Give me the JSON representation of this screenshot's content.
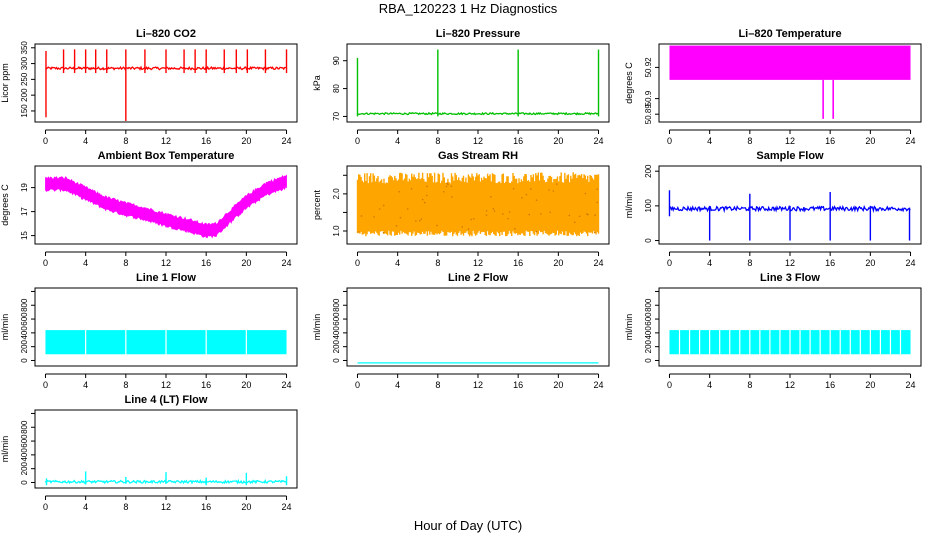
{
  "title": "RBA_120223  1 Hz Diagnostics",
  "xlabel": "Hour of Day (UTC)",
  "chart_data": [
    {
      "type": "line",
      "title": "Li–820 CO2",
      "ylabel": "Licor ppm",
      "color": "#ff0000",
      "xlim": [
        0,
        24
      ],
      "xticks": [
        0,
        4,
        8,
        12,
        16,
        20,
        24
      ],
      "ylim": [
        115,
        362
      ],
      "yticks": [
        150,
        200,
        250,
        300,
        350
      ],
      "series": [
        {
          "name": "CO2",
          "baseline": 285,
          "noise": 4,
          "spikes": [
            {
              "x": 0.05,
              "lo": 130,
              "hi": 340
            },
            {
              "x": 1.8,
              "lo": 270,
              "hi": 345
            },
            {
              "x": 2.9,
              "lo": 270,
              "hi": 345
            },
            {
              "x": 4.0,
              "lo": 270,
              "hi": 345
            },
            {
              "x": 5.0,
              "lo": 270,
              "hi": 345
            },
            {
              "x": 6.1,
              "lo": 270,
              "hi": 345
            },
            {
              "x": 8.0,
              "lo": 115,
              "hi": 345
            },
            {
              "x": 9.9,
              "lo": 270,
              "hi": 345
            },
            {
              "x": 12.0,
              "lo": 270,
              "hi": 345
            },
            {
              "x": 13.8,
              "lo": 270,
              "hi": 345
            },
            {
              "x": 14.9,
              "lo": 270,
              "hi": 345
            },
            {
              "x": 16.0,
              "lo": 270,
              "hi": 345
            },
            {
              "x": 17.8,
              "lo": 270,
              "hi": 345
            },
            {
              "x": 19.0,
              "lo": 270,
              "hi": 345
            },
            {
              "x": 20.1,
              "lo": 270,
              "hi": 345
            },
            {
              "x": 21.9,
              "lo": 270,
              "hi": 345
            },
            {
              "x": 24.0,
              "lo": 270,
              "hi": 345
            }
          ]
        }
      ]
    },
    {
      "type": "line",
      "title": "Li–820 Pressure",
      "ylabel": "kPa",
      "color": "#00c000",
      "xlim": [
        0,
        24
      ],
      "xticks": [
        0,
        4,
        8,
        12,
        16,
        20,
        24
      ],
      "ylim": [
        68,
        96
      ],
      "yticks": [
        70,
        80,
        90
      ],
      "series": [
        {
          "name": "Pressure",
          "baseline": 71,
          "noise": 0.3,
          "spikes": [
            {
              "x": 0.0,
              "lo": 70,
              "hi": 91
            },
            {
              "x": 8.0,
              "lo": 70,
              "hi": 94
            },
            {
              "x": 16.0,
              "lo": 70,
              "hi": 94
            },
            {
              "x": 24.0,
              "lo": 70,
              "hi": 94
            }
          ]
        }
      ]
    },
    {
      "type": "area",
      "title": "Li–820 Temperature",
      "ylabel": "degrees C",
      "color": "#ff00ff",
      "xlim": [
        0,
        24
      ],
      "xticks": [
        0,
        4,
        8,
        12,
        16,
        20,
        24
      ],
      "ylim": [
        50.885,
        50.935
      ],
      "yticks": [
        50.89,
        50.9,
        50.92
      ],
      "series": [
        {
          "name": "Temperature",
          "band": [
            50.912,
            50.934
          ],
          "drops": [
            {
              "x": 15.3,
              "lo": 50.887
            },
            {
              "x": 16.3,
              "lo": 50.887
            }
          ]
        }
      ]
    },
    {
      "type": "area",
      "title": "Ambient Box Temperature",
      "ylabel": "degrees C",
      "color": "#ff00ff",
      "xlim": [
        0,
        24
      ],
      "xticks": [
        0,
        4,
        8,
        12,
        16,
        20,
        24
      ],
      "ylim": [
        14.3,
        20.8
      ],
      "yticks": [
        15,
        17,
        19
      ],
      "series": [
        {
          "name": "Box Temp",
          "x": [
            0,
            2,
            4,
            6,
            8,
            10,
            12,
            14,
            16,
            17,
            18,
            20,
            22,
            24
          ],
          "y": [
            19.3,
            19.3,
            18.5,
            17.7,
            17.2,
            16.8,
            16.3,
            15.9,
            15.4,
            15.5,
            16.3,
            17.8,
            18.9,
            19.5
          ],
          "halfwidth": 0.5
        }
      ]
    },
    {
      "type": "area",
      "title": "Gas Stream RH",
      "ylabel": "percent",
      "color": "#ffa500",
      "xlim": [
        0,
        24
      ],
      "xticks": [
        0,
        4,
        8,
        12,
        16,
        20,
        24
      ],
      "ylim": [
        0.65,
        2.75
      ],
      "yticks": [
        1.0,
        1.5,
        2.0,
        2.5
      ],
      "ytick_labels": [
        "1.0",
        "",
        "2.0",
        ""
      ],
      "series": [
        {
          "name": "RH",
          "band": [
            0.95,
            2.4
          ],
          "jitter": 0.15
        }
      ]
    },
    {
      "type": "line",
      "title": "Sample Flow",
      "ylabel": "ml/min",
      "color": "#0000ff",
      "xlim": [
        0,
        24
      ],
      "xticks": [
        0,
        4,
        8,
        12,
        16,
        20,
        24
      ],
      "ylim": [
        -10,
        215
      ],
      "yticks": [
        0,
        100,
        200
      ],
      "series": [
        {
          "name": "Sample",
          "baseline": 92,
          "noise": 6,
          "spikes": [
            {
              "x": 0.0,
              "lo": 70,
              "hi": 145
            },
            {
              "x": 4.0,
              "lo": 0,
              "hi": 100
            },
            {
              "x": 8.0,
              "lo": 0,
              "hi": 135
            },
            {
              "x": 12.0,
              "lo": 0,
              "hi": 100
            },
            {
              "x": 16.0,
              "lo": 0,
              "hi": 140
            },
            {
              "x": 20.0,
              "lo": 0,
              "hi": 100
            },
            {
              "x": 23.9,
              "lo": 0,
              "hi": 95
            }
          ]
        }
      ]
    },
    {
      "type": "area",
      "title": "Line 1 Flow",
      "ylabel": "ml/min",
      "color": "#00ffff",
      "xlim": [
        0,
        24
      ],
      "xticks": [
        0,
        4,
        8,
        12,
        16,
        20,
        24
      ],
      "ylim": [
        -80,
        1050
      ],
      "yticks": [
        0,
        200,
        400,
        600,
        800,
        1000
      ],
      "ytick_labels": [
        "0",
        "200",
        "400",
        "600",
        "800",
        ""
      ],
      "series": [
        {
          "name": "Line 1",
          "band": [
            90,
            440
          ],
          "gaps": [
            4,
            8,
            12,
            16,
            20
          ]
        }
      ]
    },
    {
      "type": "line",
      "title": "Line 2 Flow",
      "ylabel": "ml/min",
      "color": "#00ffff",
      "xlim": [
        0,
        24
      ],
      "xticks": [
        0,
        4,
        8,
        12,
        16,
        20,
        24
      ],
      "ylim": [
        -80,
        1050
      ],
      "yticks": [
        0,
        200,
        400,
        600,
        800,
        1000
      ],
      "ytick_labels": [
        "0",
        "200",
        "400",
        "600",
        "800",
        ""
      ],
      "series": [
        {
          "name": "Line 2",
          "baseline": -35,
          "noise": 0
        }
      ]
    },
    {
      "type": "area",
      "title": "Line 3 Flow",
      "ylabel": "ml/min",
      "color": "#00ffff",
      "xlim": [
        0,
        24
      ],
      "xticks": [
        0,
        4,
        8,
        12,
        16,
        20,
        24
      ],
      "ylim": [
        -80,
        1050
      ],
      "yticks": [
        0,
        200,
        400,
        600,
        800,
        1000
      ],
      "ytick_labels": [
        "0",
        "200",
        "400",
        "600",
        "800",
        ""
      ],
      "series": [
        {
          "name": "Line 3",
          "band": [
            90,
            440
          ],
          "gaps": [
            1,
            2,
            3,
            4,
            5,
            6,
            7,
            8,
            9,
            10,
            11,
            12,
            13,
            14,
            15,
            16,
            17,
            18,
            19,
            20,
            21,
            22,
            23
          ]
        }
      ]
    },
    {
      "type": "line",
      "title": "Line 4 (LT) Flow",
      "ylabel": "ml/min",
      "color": "#00ffff",
      "xlim": [
        0,
        24
      ],
      "xticks": [
        0,
        4,
        8,
        12,
        16,
        20,
        24
      ],
      "ylim": [
        -80,
        1050
      ],
      "yticks": [
        0,
        200,
        400,
        600,
        800,
        1000
      ],
      "ytick_labels": [
        "0",
        "200",
        "400",
        "600",
        "800",
        ""
      ],
      "series": [
        {
          "name": "Line 4",
          "baseline": 10,
          "noise": 18,
          "spikes": [
            {
              "x": 0.1,
              "lo": -40,
              "hi": 60
            },
            {
              "x": 4.0,
              "lo": -30,
              "hi": 160
            },
            {
              "x": 8.0,
              "lo": -20,
              "hi": 80
            },
            {
              "x": 12.0,
              "lo": -20,
              "hi": 150
            },
            {
              "x": 16.0,
              "lo": -40,
              "hi": 70
            },
            {
              "x": 20.0,
              "lo": -40,
              "hi": 140
            },
            {
              "x": 24.0,
              "lo": -40,
              "hi": 90
            }
          ]
        }
      ]
    }
  ]
}
